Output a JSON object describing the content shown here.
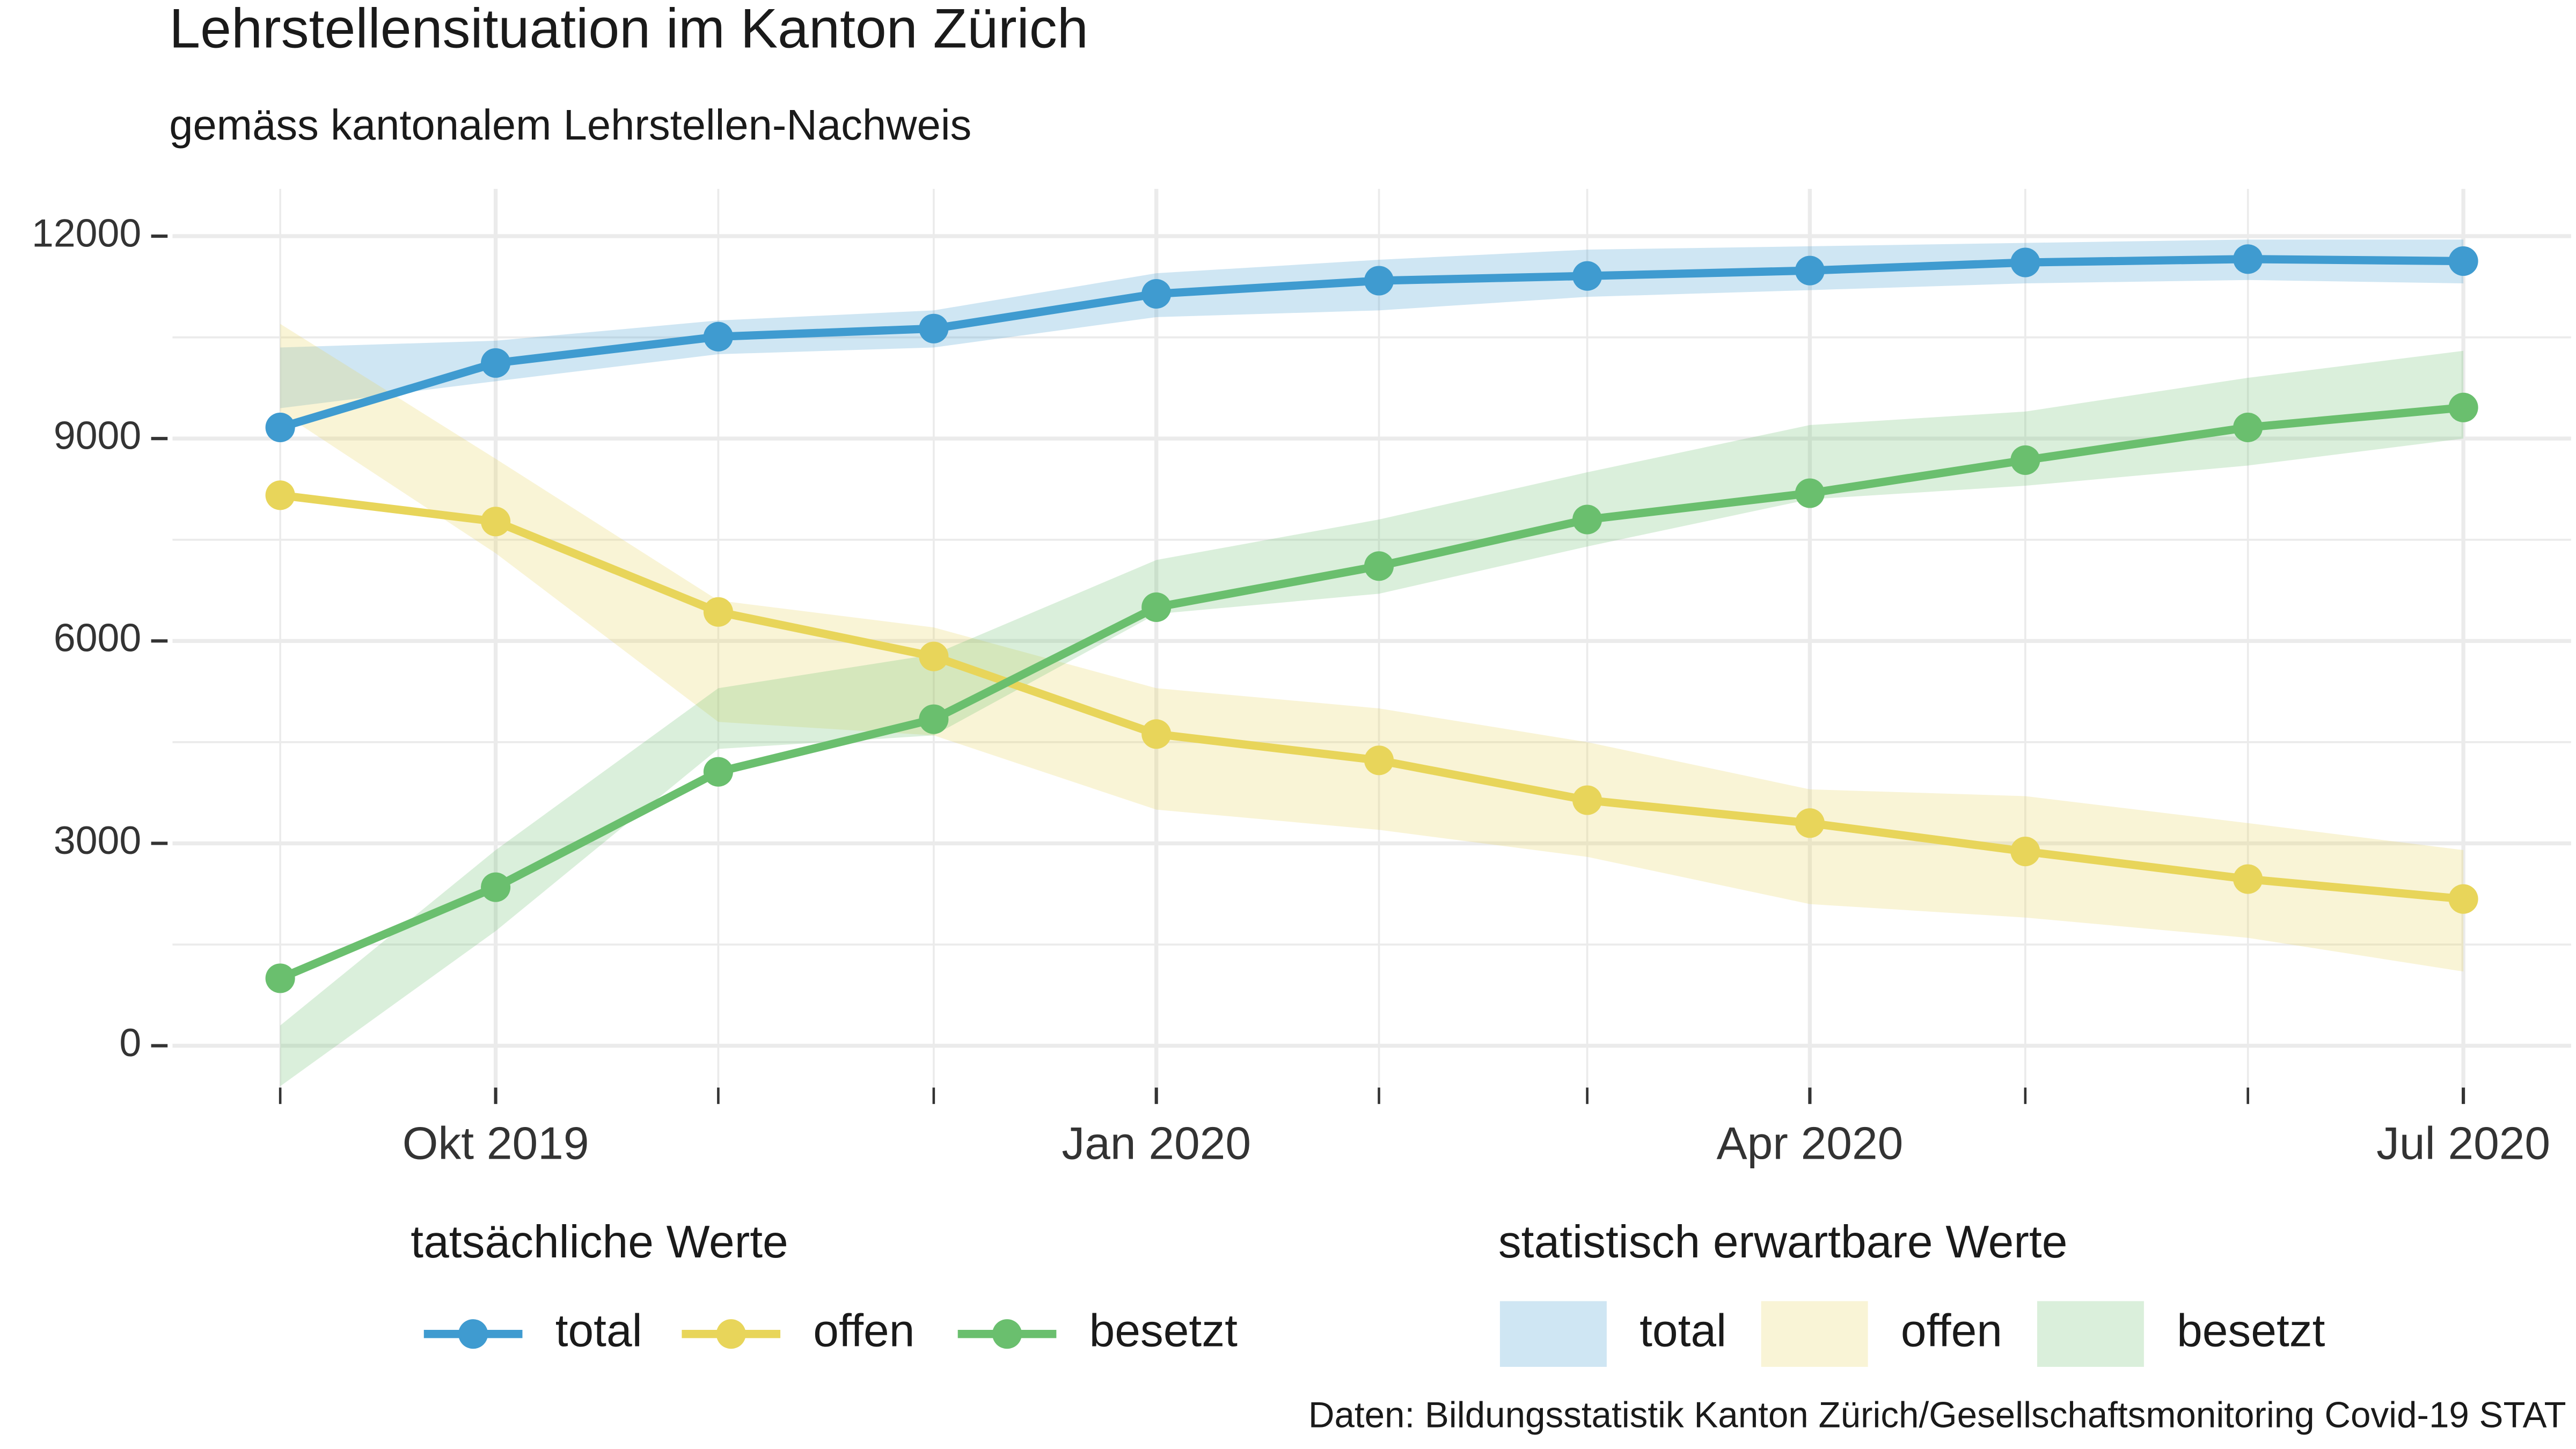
{
  "chart_data": {
    "type": "line",
    "title": "Lehrstellensituation im Kanton Zürich",
    "subtitle": "gemäss kantonalem Lehrstellen-Nachweis",
    "source": "Daten: Bildungsstatistik Kanton Zürich/Gesellschaftsmonitoring Covid-19 STAT",
    "x": [
      "2019-09",
      "2019-10",
      "2019-11",
      "2019-12",
      "2020-01",
      "2020-02",
      "2020-03",
      "2020-04",
      "2020-05",
      "2020-06",
      "2020-07"
    ],
    "legend_title": "tatsächliche Werte",
    "series": [
      {
        "name": "total",
        "color": "#3f9bd0",
        "values": [
          9165,
          10120,
          10510,
          10630,
          11145,
          11340,
          11410,
          11490,
          11610,
          11660,
          11630
        ]
      },
      {
        "name": "offen",
        "color": "#e8d55a",
        "values": [
          8160,
          7770,
          6430,
          5770,
          4620,
          4230,
          3640,
          3300,
          2880,
          2470,
          2175
        ]
      },
      {
        "name": "besetzt",
        "color": "#6abf6e",
        "values": [
          1000,
          2350,
          4060,
          4840,
          6500,
          7110,
          7800,
          8190,
          8680,
          9165,
          9460
        ]
      }
    ],
    "band_legend_title": "statistisch erwartbare Werte",
    "bands": [
      {
        "name": "total",
        "color": "#3f9bd0",
        "lower": [
          9450,
          9850,
          10250,
          10350,
          10800,
          10900,
          11100,
          11200,
          11300,
          11350,
          11300
        ],
        "upper": [
          10350,
          10450,
          10750,
          10900,
          11450,
          11650,
          11800,
          11850,
          11900,
          11950,
          11950
        ]
      },
      {
        "name": "offen",
        "color": "#e8d55a",
        "lower": [
          9400,
          7300,
          4800,
          4600,
          3500,
          3200,
          2800,
          2100,
          1900,
          1600,
          1100
        ],
        "upper": [
          10700,
          8700,
          6600,
          6200,
          5300,
          5000,
          4500,
          3800,
          3700,
          3300,
          2900
        ]
      },
      {
        "name": "besetzt",
        "color": "#6abf6e",
        "lower": [
          -600,
          1700,
          4400,
          4600,
          6400,
          6700,
          7400,
          8100,
          8300,
          8600,
          9000
        ],
        "upper": [
          300,
          2900,
          5300,
          5800,
          7200,
          7800,
          8500,
          9200,
          9400,
          9900,
          10300
        ]
      }
    ],
    "xlim": [
      "2019-08-17",
      "2020-07-16"
    ],
    "xticks": [
      {
        "value": "2019-10",
        "label": "Okt 2019"
      },
      {
        "value": "2020-01",
        "label": "Jan 2020"
      },
      {
        "value": "2020-04",
        "label": "Apr 2020"
      },
      {
        "value": "2020-07",
        "label": "Jul 2020"
      }
    ],
    "xminorticks": [
      "2019-09",
      "2019-11",
      "2019-12",
      "2020-02",
      "2020-03",
      "2020-05",
      "2020-06"
    ],
    "ylim": [
      -620,
      12700
    ],
    "yticks": [
      0,
      3000,
      6000,
      9000,
      12000
    ],
    "yminorticks": [
      1500,
      4500,
      7500,
      10500
    ],
    "grid": true
  }
}
